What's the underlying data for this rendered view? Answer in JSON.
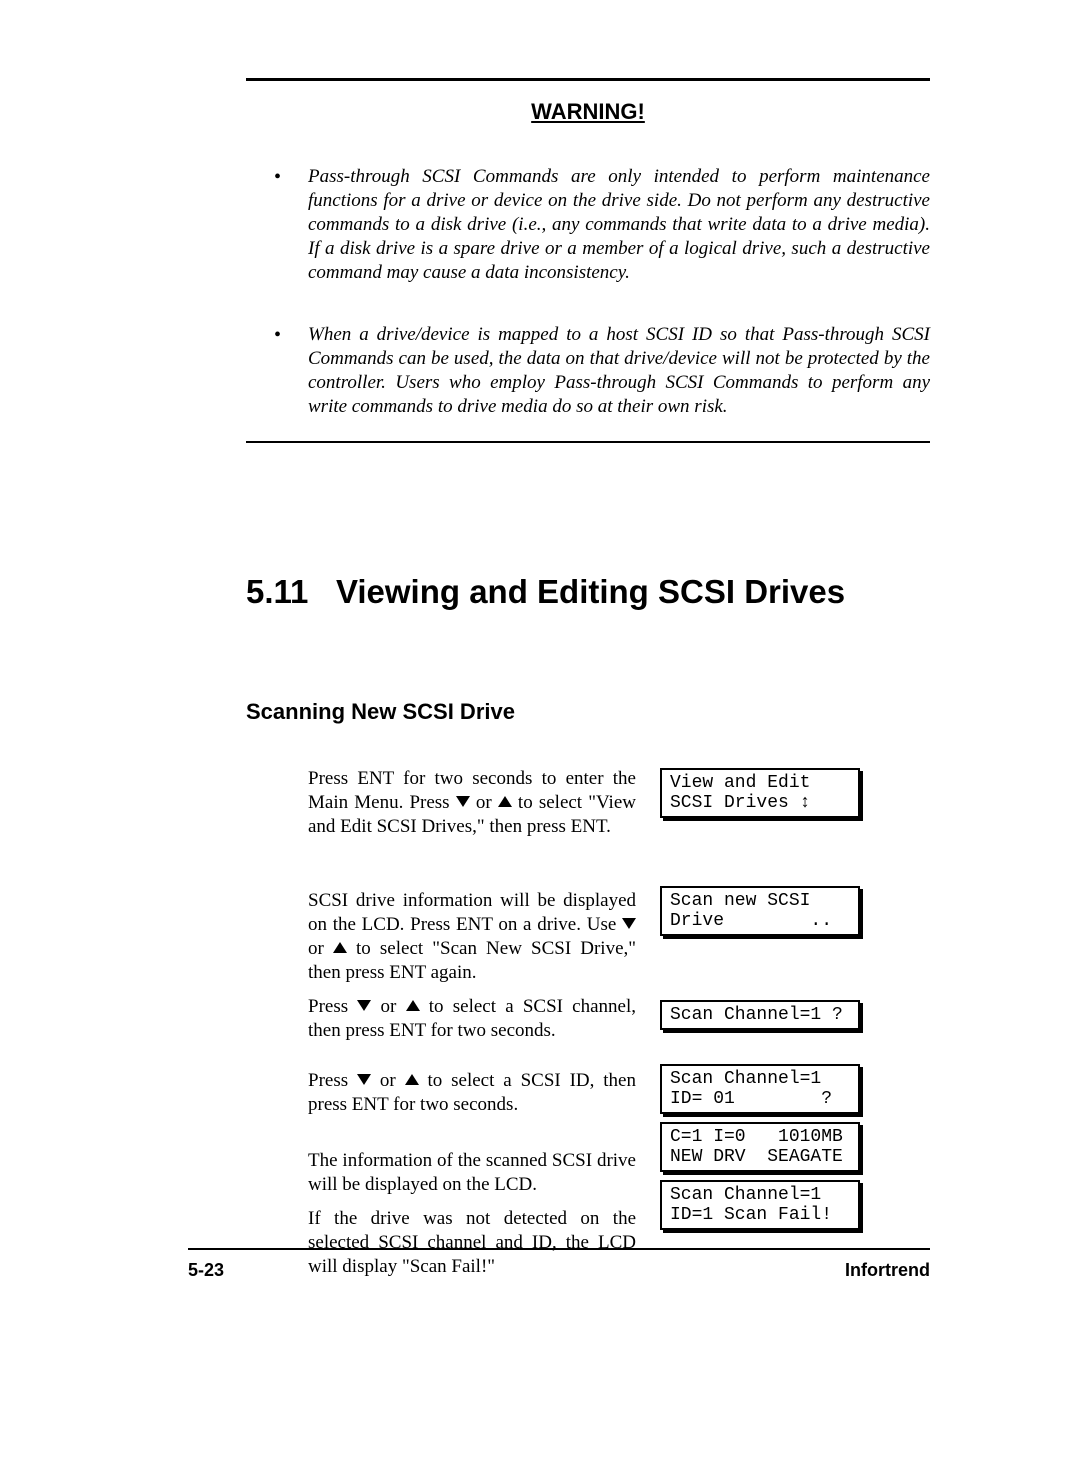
{
  "warning": {
    "title": "WARNING!",
    "bullets": [
      "Pass-through SCSI Commands are only intended to perform maintenance functions for a drive or device on the drive side. Do not perform any destructive commands to a disk drive (i.e., any commands that write data to a drive media). If a disk drive is a spare drive or a member of a logical drive, such a destructive command may cause a data inconsistency.",
      "When a drive/device is mapped to a host SCSI ID so that Pass-through SCSI Commands can be used, the data on that drive/device will not be protected by the controller.  Users who employ Pass-through SCSI Commands to perform any write commands to drive media do so at their own risk."
    ]
  },
  "section": {
    "number": "5.11",
    "title": "Viewing and Editing SCSI Drives"
  },
  "subsection": {
    "title": "Scanning New SCSI Drive"
  },
  "steps": {
    "p1a": "Press ENT for two seconds to enter the Main Menu. Press ",
    "p1b": " or ",
    "p1c": " to select \"View and Edit SCSI Drives,\" then press ENT.",
    "p2a": "SCSI drive information will be displayed on the LCD. Press ENT on a drive. Use ",
    "p2b": " or ",
    "p2c": " to select \"Scan New SCSI Drive,\" then press ENT again.",
    "p3a": "Press ",
    "p3b": " or ",
    "p3c": " to select a SCSI channel, then press ENT for two seconds.",
    "p4a": "Press ",
    "p4b": " or ",
    "p4c": " to select a SCSI ID, then press ENT for two seconds.",
    "p5": "The information of the scanned SCSI drive will be displayed on the LCD.",
    "p6": "If the drive was not detected on the selected SCSI channel and ID, the LCD will display \"Scan Fail!\""
  },
  "lcd": {
    "l1": "View and Edit\nSCSI Drives ↕",
    "l2": "Scan new SCSI\nDrive        ..",
    "l3": "Scan Channel=1 ?\n",
    "l4": "Scan Channel=1\nID= 01        ?",
    "l5": "C=1 I=0   1010MB\nNEW DRV  SEAGATE",
    "l6": "Scan Channel=1\nID=1 Scan Fail!"
  },
  "footer": {
    "page": "5-23",
    "brand": "Infortrend"
  }
}
